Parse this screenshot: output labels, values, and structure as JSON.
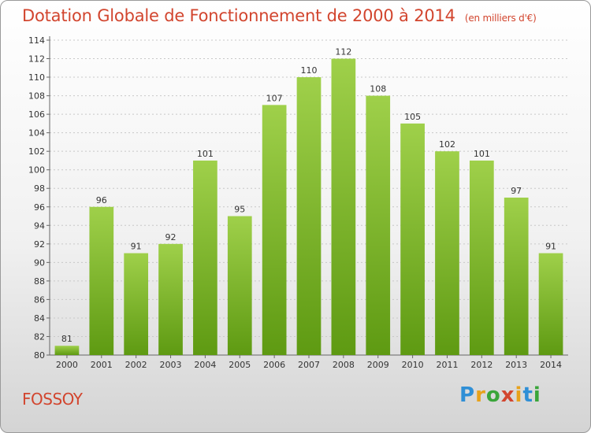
{
  "chart_data": {
    "type": "bar",
    "title": "Dotation Globale de Fonctionnement de 2000 à 2014",
    "unit": "(en milliers d'€)",
    "categories": [
      "2000",
      "2001",
      "2002",
      "2003",
      "2004",
      "2005",
      "2006",
      "2007",
      "2008",
      "2009",
      "2010",
      "2011",
      "2012",
      "2013",
      "2014"
    ],
    "values": [
      81,
      96,
      91,
      92,
      101,
      95,
      107,
      110,
      112,
      108,
      105,
      102,
      101,
      97,
      91
    ],
    "ylim": [
      80,
      114
    ],
    "yticks": [
      80,
      82,
      84,
      86,
      88,
      90,
      92,
      94,
      96,
      98,
      100,
      102,
      104,
      106,
      108,
      110,
      112,
      114
    ],
    "grid": true,
    "bar_color": "#7cbd2c"
  },
  "footer": {
    "commune": "FOSSOY"
  },
  "logo": {
    "text": "Proxiti"
  }
}
